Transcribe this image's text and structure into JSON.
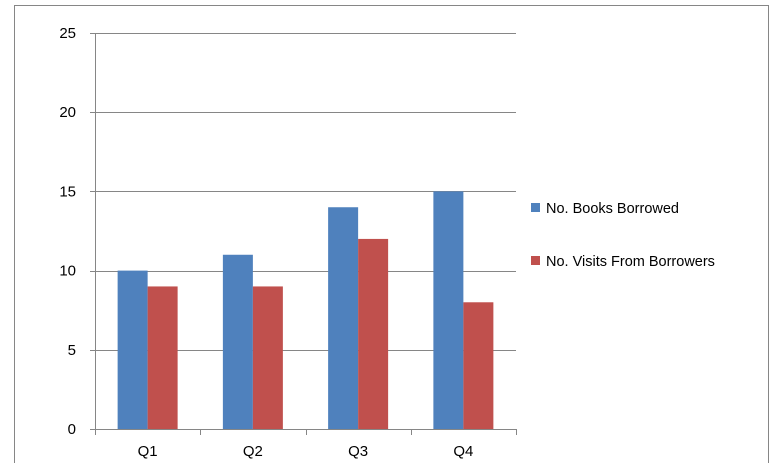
{
  "chart_data": {
    "type": "bar",
    "title": "",
    "xlabel": "",
    "ylabel": "",
    "categories": [
      "Q1",
      "Q2",
      "Q3",
      "Q4"
    ],
    "series": [
      {
        "name": "No. Books Borrowed",
        "values": [
          10,
          11,
          14,
          15
        ],
        "color": "#4F81BD"
      },
      {
        "name": "No. Visits From Borrowers",
        "values": [
          9,
          9,
          12,
          8
        ],
        "color": "#C0504D"
      }
    ],
    "ylim": [
      0,
      25
    ],
    "yticks": [
      0,
      5,
      10,
      15,
      20,
      25
    ],
    "grid": true,
    "legend_position": "right"
  }
}
